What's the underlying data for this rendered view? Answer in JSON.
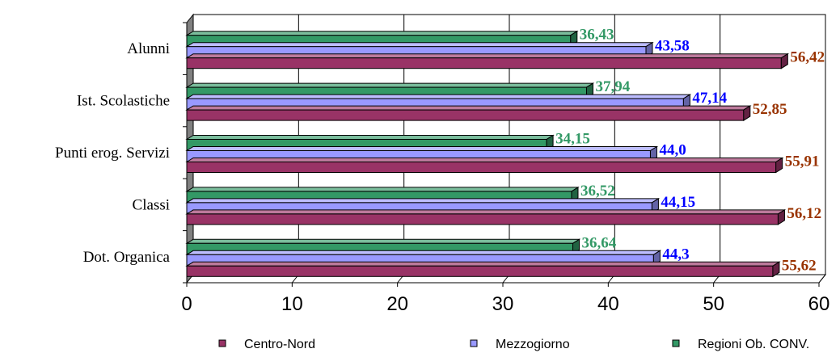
{
  "chart_data": {
    "type": "bar",
    "orientation": "horizontal",
    "categories": [
      "Alunni",
      "Ist. Scolastiche",
      "Punti erog. Servizi",
      "Classi",
      "Dot. Organica"
    ],
    "series": [
      {
        "name": "Centro-Nord",
        "values": [
          56.42,
          52.85,
          55.91,
          56.12,
          55.62
        ],
        "labels": [
          "56,42",
          "52,85",
          "55,91",
          "56,12",
          "55,62"
        ],
        "color": "#993366",
        "label_color": "#993300"
      },
      {
        "name": "Mezzogiorno",
        "values": [
          43.58,
          47.14,
          44.0,
          44.15,
          44.3
        ],
        "labels": [
          "43,58",
          "47,14",
          "44,0",
          "44,15",
          "44,3"
        ],
        "color": "#9999ff",
        "label_color": "#0000ff"
      },
      {
        "name": "Regioni Ob. CONV.",
        "values": [
          36.43,
          37.94,
          34.15,
          36.52,
          36.64
        ],
        "labels": [
          "36,43",
          "37,94",
          "34,15",
          "36,52",
          "36,64"
        ],
        "color": "#339966",
        "label_color": "#339966"
      }
    ],
    "xlim": [
      0,
      60
    ],
    "xticks": [
      "0",
      "10",
      "20",
      "30",
      "40",
      "50",
      "60"
    ],
    "grid": true,
    "legend_position": "bottom",
    "title": "",
    "xlabel": "",
    "ylabel": ""
  }
}
